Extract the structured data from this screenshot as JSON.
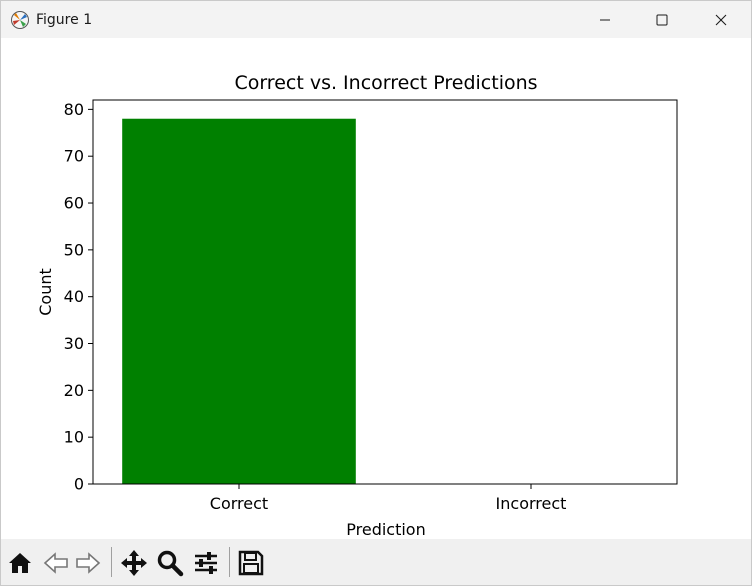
{
  "window": {
    "title": "Figure 1",
    "icon": "matplotlib-icon",
    "controls": [
      "minimize-icon",
      "maximize-icon",
      "close-icon"
    ]
  },
  "toolbar": {
    "tools": [
      "home-icon",
      "back-arrow-icon",
      "forward-arrow-icon",
      "pan-move-icon",
      "zoom-magnifier-icon",
      "configure-subplots-icon",
      "save-disk-icon"
    ]
  },
  "chart_data": {
    "type": "bar",
    "title": "Correct vs. Incorrect Predictions",
    "xlabel": "Prediction",
    "ylabel": "Count",
    "categories": [
      "Correct",
      "Incorrect"
    ],
    "values": [
      78,
      0
    ],
    "colors": [
      "#008000",
      "#ff0000"
    ],
    "ylim": [
      0,
      82
    ],
    "yticks": [
      0,
      10,
      20,
      30,
      40,
      50,
      60,
      70,
      80
    ],
    "grid": false,
    "legend": false
  }
}
